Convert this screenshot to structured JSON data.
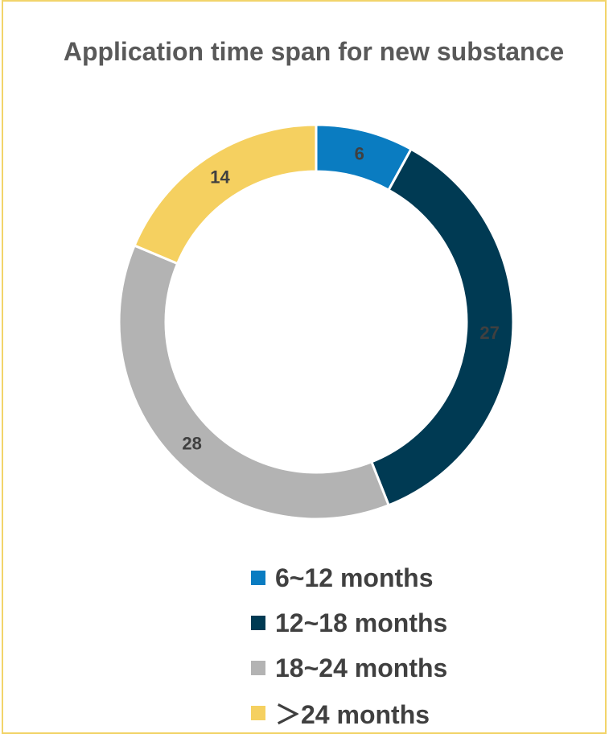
{
  "chart_data": {
    "type": "pie",
    "title": "Application time span for new substance",
    "categories": [
      "6~12 months",
      "12~18 months",
      "18~24 months",
      "＞24 months"
    ],
    "values": [
      6,
      27,
      28,
      14
    ],
    "colors": [
      "#0a7cc1",
      "#003a53",
      "#b3b3b3",
      "#f5d060"
    ],
    "label_colors": [
      "#404040",
      "#404040",
      "#404040",
      "#404040"
    ],
    "legend_position": "bottom-right",
    "donut": true
  }
}
